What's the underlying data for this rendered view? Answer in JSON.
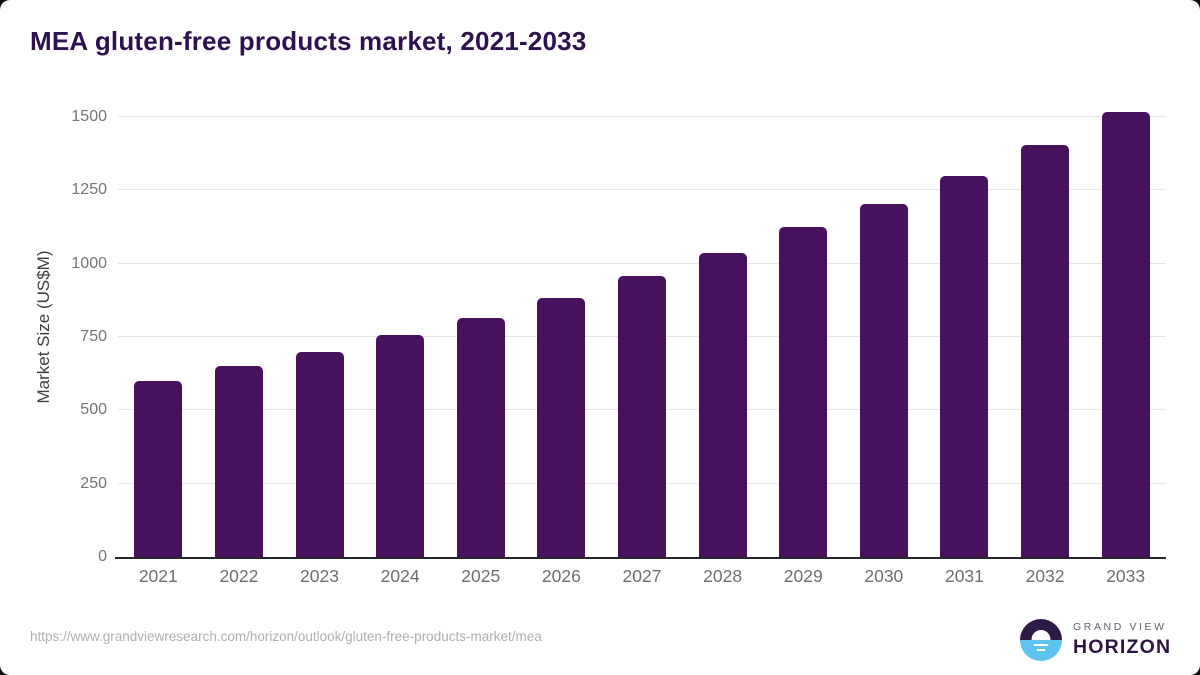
{
  "title": "MEA gluten-free products market, 2021-2033",
  "chart_data": {
    "type": "bar",
    "title": "MEA gluten-free products market, 2021-2033",
    "categories": [
      "2021",
      "2022",
      "2023",
      "2024",
      "2025",
      "2026",
      "2027",
      "2028",
      "2029",
      "2030",
      "2031",
      "2032",
      "2033"
    ],
    "values": [
      600,
      650,
      700,
      757,
      815,
      884,
      958,
      1038,
      1126,
      1205,
      1300,
      1405,
      1517
    ],
    "xlabel": "",
    "ylabel": "Market Size (US$M)",
    "ylim": [
      0,
      1575
    ],
    "yticks": [
      0,
      250,
      500,
      750,
      1000,
      1250,
      1500
    ],
    "grid": true,
    "legend": false,
    "bar_color": "#48115d"
  },
  "footer": {
    "source_url": "https://www.grandviewresearch.com/horizon/outlook/gluten-free-products-market/mea",
    "logo": {
      "top_text": "GRAND VIEW",
      "bottom_text": "HORIZON"
    }
  },
  "colors": {
    "title": "#2e1250",
    "bar": "#48115d",
    "gridline": "#e7e7e7",
    "axis_line": "#27262e",
    "tick_label": "#757575",
    "x_label": "#6e6e6e",
    "url_text": "#b0b0b0",
    "logo_purple": "#2e1a47",
    "logo_blue": "#5ec3f0"
  }
}
